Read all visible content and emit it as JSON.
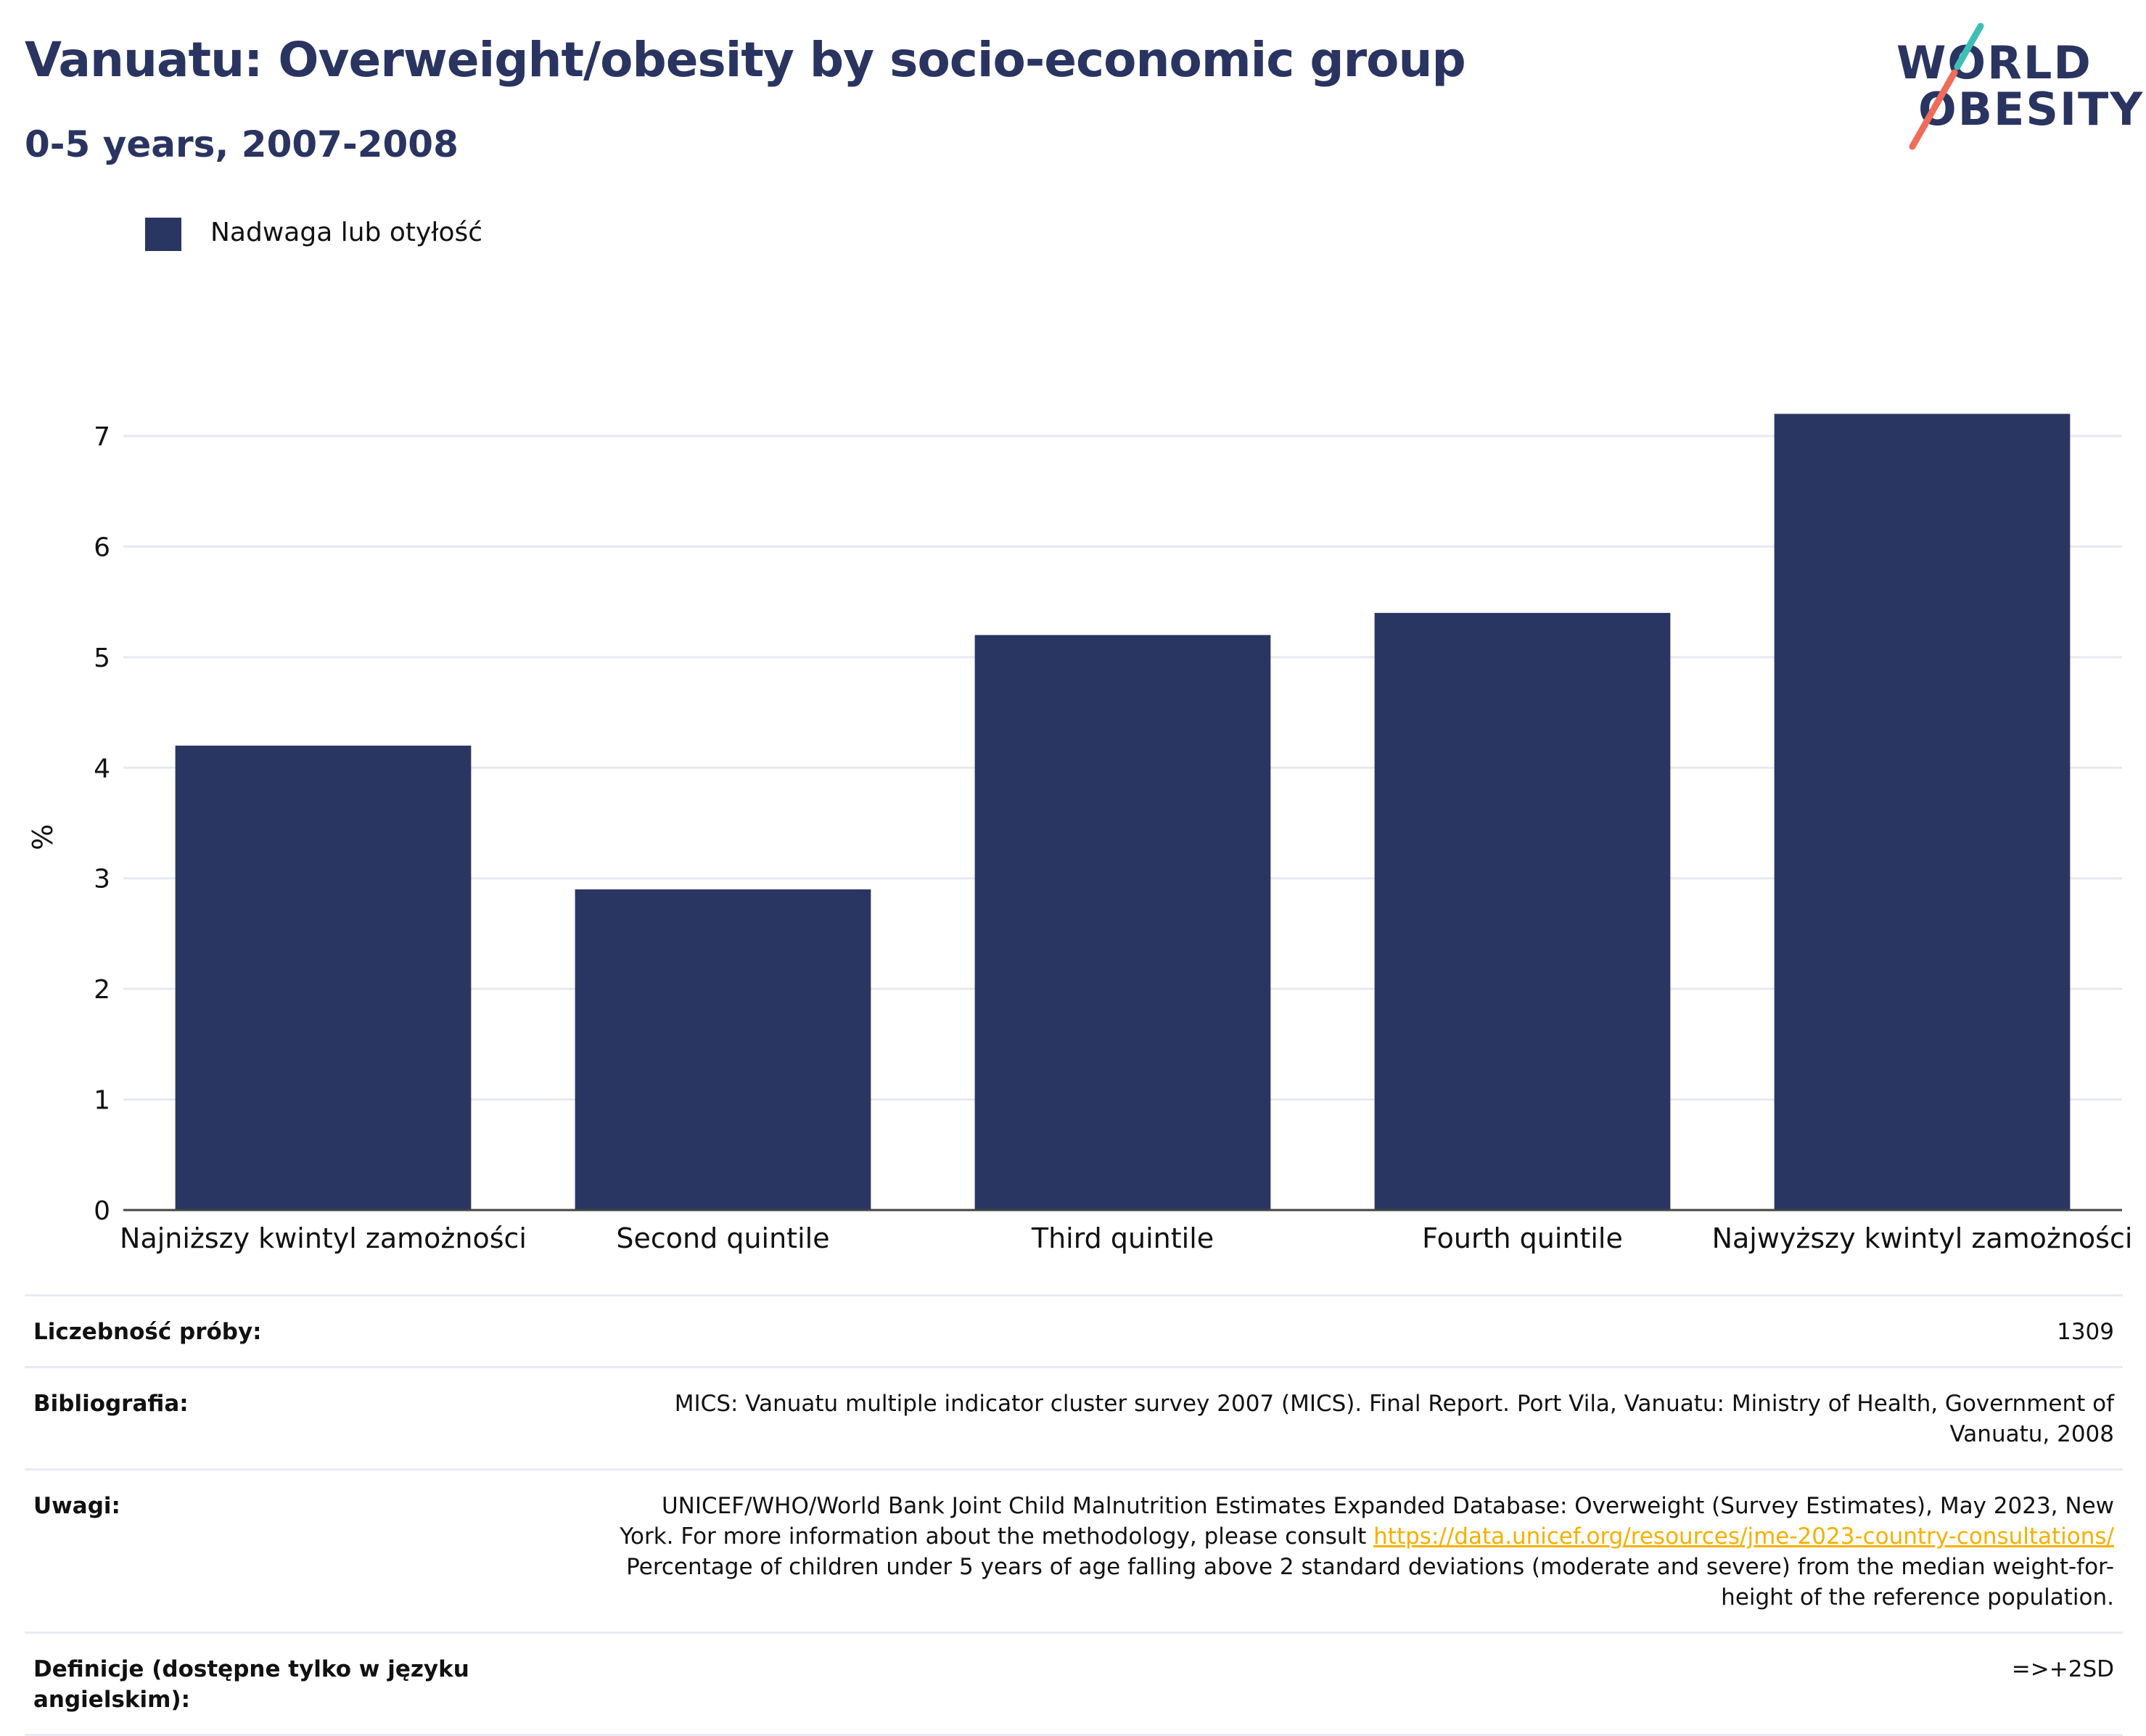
{
  "header": {
    "title": "Vanuatu: Overweight/obesity by socio-economic group",
    "subtitle": "0-5 years, 2007-2008"
  },
  "logo": {
    "line1": "WORLD",
    "line2": "OBESITY",
    "colors": {
      "text": "#2a3461",
      "slash_teal": "#3dbfb8",
      "slash_coral": "#ef6c5a"
    }
  },
  "legend": {
    "label": "Nadwaga lub otyłość",
    "color": "#2a3662"
  },
  "chart_data": {
    "type": "bar",
    "title": "Vanuatu: Overweight/obesity by socio-economic group",
    "subtitle": "0-5 years, 2007-2008",
    "ylabel": "%",
    "xlabel": "",
    "categories": [
      "Najniższy kwintyl zamożności",
      "Second quintile",
      "Third quintile",
      "Fourth quintile",
      "Najwyższy kwintyl zamożności"
    ],
    "series": [
      {
        "name": "Nadwaga lub otyłość",
        "values": [
          4.2,
          2.9,
          5.2,
          5.4,
          7.2
        ],
        "color": "#2a3662"
      }
    ],
    "ylim": [
      0,
      7.4
    ],
    "yticks": [
      0,
      1,
      2,
      3,
      4,
      5,
      6,
      7
    ],
    "grid": true,
    "legend_position": "top-left"
  },
  "info": {
    "rows": [
      {
        "key": "Liczebność próby:",
        "value": "1309"
      },
      {
        "key": "Bibliografia:",
        "value": "MICS: Vanuatu multiple indicator cluster survey 2007 (MICS). Final Report. Port Vila, Vanuatu: Ministry of Health, Government of Vanuatu, 2008"
      },
      {
        "key": "Uwagi:",
        "value_before": "UNICEF/WHO/World Bank Joint Child Malnutrition Estimates Expanded Database: Overweight (Survey Estimates), May 2023, New York. For more information about the methodology, please consult ",
        "link": "https://data.unicef.org/resources/jme-2023-country-consultations/",
        "value_after": " Percentage of children under 5 years of age falling above 2 standard deviations (moderate and severe) from the median weight-for-height of the reference population."
      },
      {
        "key": "Definicje (dostępne tylko w języku angielskim):",
        "value": "=>+2SD"
      }
    ]
  }
}
